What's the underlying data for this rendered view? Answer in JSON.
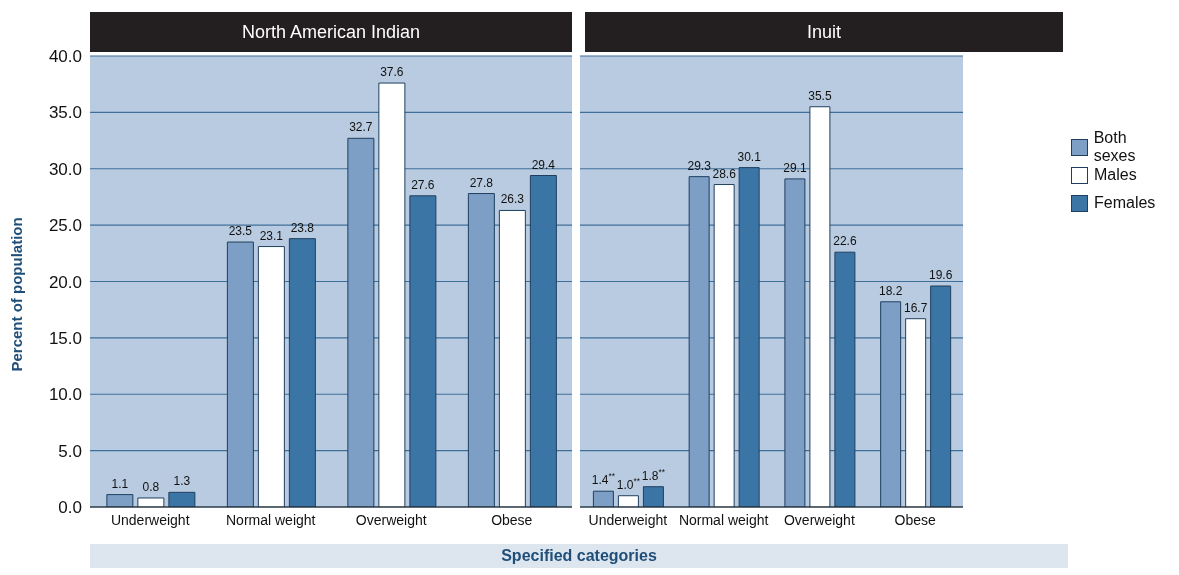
{
  "chart_data": [
    {
      "type": "bar",
      "title": "North American Indian",
      "xlabel": "Specified categories",
      "ylabel": "Percent of population",
      "categories": [
        "Underweight",
        "Normal weight",
        "Overweight",
        "Obese"
      ],
      "series": [
        {
          "color": "#7d9fc6",
          "values": [
            1.1,
            23.5,
            32.7,
            27.8
          ]
        },
        {
          "color": "#ffffff",
          "values": [
            0.8,
            23.1,
            37.6,
            26.3
          ]
        },
        {
          "color": "#3b75a5",
          "values": [
            1.3,
            23.8,
            27.6,
            29.4
          ]
        }
      ],
      "ylim": [
        0,
        40
      ],
      "yticks": [
        {
          "value": 0,
          "label": "0.0"
        },
        {
          "value": 5,
          "label": "5.0"
        },
        {
          "value": 10,
          "label": "10.0"
        },
        {
          "value": 15,
          "label": "15.0"
        },
        {
          "value": 20,
          "label": "20.0"
        },
        {
          "value": 25,
          "label": "25.0"
        },
        {
          "value": 30,
          "label": "30.0"
        },
        {
          "value": 35,
          "label": "35.0"
        },
        {
          "value": 40,
          "label": "40.0"
        }
      ],
      "grid": "y",
      "data_labels": true,
      "legend": false
    },
    {
      "type": "bar",
      "title": "Inuit",
      "categories": [
        "Underweight",
        "Normal weight",
        "Overweight",
        "Obese"
      ],
      "series": [
        {
          "name": "Both sexes",
          "color": "#7d9fc6",
          "values": [
            1.4,
            29.3,
            29.1,
            18.2
          ],
          "value_labels": [
            "1.4$^{**}$",
            "29.3",
            "29.1",
            "18.2"
          ]
        },
        {
          "name": "Males",
          "color": "#ffffff",
          "values": [
            1.0,
            28.6,
            35.5,
            16.7
          ],
          "value_labels": [
            "1.0$^{**}$",
            "28.6",
            "35.5",
            "16.7"
          ]
        },
        {
          "name": "Females",
          "color": "#3b75a5",
          "values": [
            1.8,
            30.1,
            22.6,
            19.6
          ],
          "value_labels": [
            "1.8$^{**}$",
            "30.1",
            "22.6",
            "19.6"
          ]
        }
      ],
      "ylim": [
        0,
        40
      ],
      "yticks": [
        0,
        5,
        10,
        15,
        20,
        25,
        30,
        35,
        40
      ],
      "grid": "y",
      "tick_labels": "x",
      "legend": "right"
    }
  ]
}
